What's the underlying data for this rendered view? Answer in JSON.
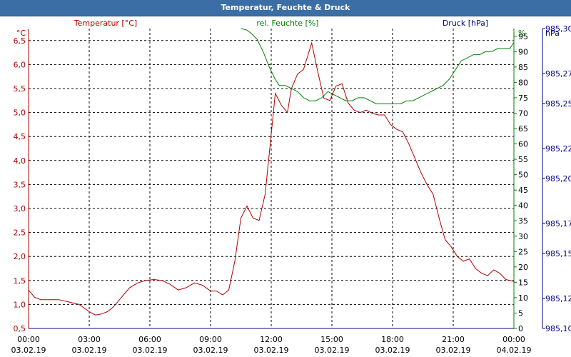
{
  "chart_data": {
    "type": "line",
    "title": "Temperatur, Feuchte & Druck",
    "axes": {
      "temperature": {
        "label": "Temperatur [°C]",
        "unit": "°C",
        "range": [
          0.5,
          6.75
        ],
        "ticks": [
          "0,5",
          "1,0",
          "1,5",
          "2,0",
          "2,5",
          "3,0",
          "3,5",
          "4,0",
          "4,5",
          "5,0",
          "5,5",
          "6,0",
          "6,5"
        ],
        "color": "#b00000"
      },
      "humidity": {
        "label": "rel. Feuchte [%]",
        "unit": "%",
        "range": [
          0,
          97.5
        ],
        "ticks": [
          "0",
          "5",
          "10",
          "15",
          "20",
          "25",
          "30",
          "35",
          "40",
          "45",
          "50",
          "55",
          "60",
          "65",
          "70",
          "75",
          "80",
          "85",
          "90",
          "95"
        ],
        "color": "#008000"
      },
      "pressure": {
        "label": "Druck [hPa]",
        "unit": "hPa",
        "range": [
          985.1,
          985.3
        ],
        "ticks": [
          "985,10",
          "985,12",
          "985,15",
          "985,17",
          "985,20",
          "985,22",
          "985,25",
          "985,27",
          "985,30"
        ],
        "color": "#000080"
      }
    },
    "x_ticks": [
      {
        "time": "00:00",
        "date": "03.02.19"
      },
      {
        "time": "03:00",
        "date": "03.02.19"
      },
      {
        "time": "06:00",
        "date": "03.02.19"
      },
      {
        "time": "09:00",
        "date": "03.02.19"
      },
      {
        "time": "12:00",
        "date": "03.02.19"
      },
      {
        "time": "15:00",
        "date": "03.02.19"
      },
      {
        "time": "18:00",
        "date": "03.02.19"
      },
      {
        "time": "21:00",
        "date": "03.02.19"
      },
      {
        "time": "00:00",
        "date": "04.02.19"
      }
    ],
    "x_range_hours": [
      0,
      24
    ],
    "grid": true,
    "series": [
      {
        "name": "Temperatur",
        "axis": "temperature",
        "color": "#b00000",
        "x": [
          0,
          0.3,
          0.6,
          1,
          1.5,
          2,
          2.5,
          3,
          3.3,
          3.6,
          3.9,
          4.2,
          4.6,
          5,
          5.4,
          5.8,
          6.2,
          6.6,
          7,
          7.4,
          7.8,
          8.2,
          8.6,
          9,
          9.3,
          9.6,
          9.9,
          10.2,
          10.5,
          10.8,
          11.1,
          11.4,
          11.7,
          12,
          12.2,
          12.5,
          12.8,
          13,
          13.3,
          13.6,
          14,
          14.3,
          14.6,
          14.9,
          15.2,
          15.5,
          15.8,
          16.1,
          16.4,
          16.7,
          17,
          17.3,
          17.6,
          17.9,
          18.2,
          18.5,
          18.8,
          19.1,
          19.4,
          19.7,
          20,
          20.3,
          20.6,
          20.9,
          21.2,
          21.5,
          21.8,
          22.1,
          22.4,
          22.7,
          23,
          23.3,
          23.6,
          24
        ],
        "y": [
          1.3,
          1.15,
          1.1,
          1.1,
          1.1,
          1.05,
          1.0,
          0.85,
          0.78,
          0.8,
          0.85,
          0.95,
          1.15,
          1.35,
          1.45,
          1.5,
          1.52,
          1.5,
          1.42,
          1.3,
          1.35,
          1.45,
          1.4,
          1.28,
          1.28,
          1.2,
          1.3,
          1.9,
          2.8,
          3.05,
          2.8,
          2.75,
          3.3,
          4.55,
          5.4,
          5.15,
          5.0,
          5.5,
          5.8,
          5.9,
          6.45,
          5.85,
          5.3,
          5.25,
          5.55,
          5.6,
          5.2,
          5.05,
          5.0,
          5.05,
          4.98,
          4.95,
          4.95,
          4.75,
          4.65,
          4.6,
          4.35,
          4.05,
          3.75,
          3.5,
          3.3,
          2.8,
          2.35,
          2.2,
          2.0,
          1.9,
          1.95,
          1.75,
          1.65,
          1.6,
          1.72,
          1.65,
          1.52,
          1.48
        ]
      },
      {
        "name": "rel. Feuchte",
        "axis": "humidity",
        "color": "#008000",
        "x": [
          10.5,
          10.8,
          11,
          11.3,
          11.6,
          11.9,
          12.2,
          12.4,
          12.7,
          13,
          13.3,
          13.6,
          13.9,
          14.2,
          14.5,
          14.8,
          15.1,
          15.4,
          15.7,
          16,
          16.3,
          16.6,
          16.9,
          17.2,
          17.5,
          17.8,
          18.1,
          18.4,
          18.7,
          19,
          19.3,
          19.6,
          19.9,
          20.2,
          20.5,
          20.8,
          21.1,
          21.4,
          21.7,
          22,
          22.3,
          22.6,
          22.9,
          23.2,
          23.5,
          23.8,
          24
        ],
        "y": [
          97.5,
          97,
          96,
          94,
          90,
          85,
          81,
          79,
          79,
          78,
          77,
          75,
          74,
          74,
          75,
          77,
          76,
          75,
          74,
          74,
          75,
          75,
          74,
          73,
          73,
          73,
          73,
          73,
          74,
          74,
          75,
          76,
          77,
          78,
          79,
          81,
          84,
          87,
          88,
          89,
          89,
          90,
          90,
          91,
          91,
          91,
          93
        ]
      },
      {
        "name": "Druck",
        "axis": "pressure",
        "color": "#000080",
        "x": [
          0,
          24
        ],
        "y": [
          985.1,
          985.1
        ]
      }
    ]
  }
}
